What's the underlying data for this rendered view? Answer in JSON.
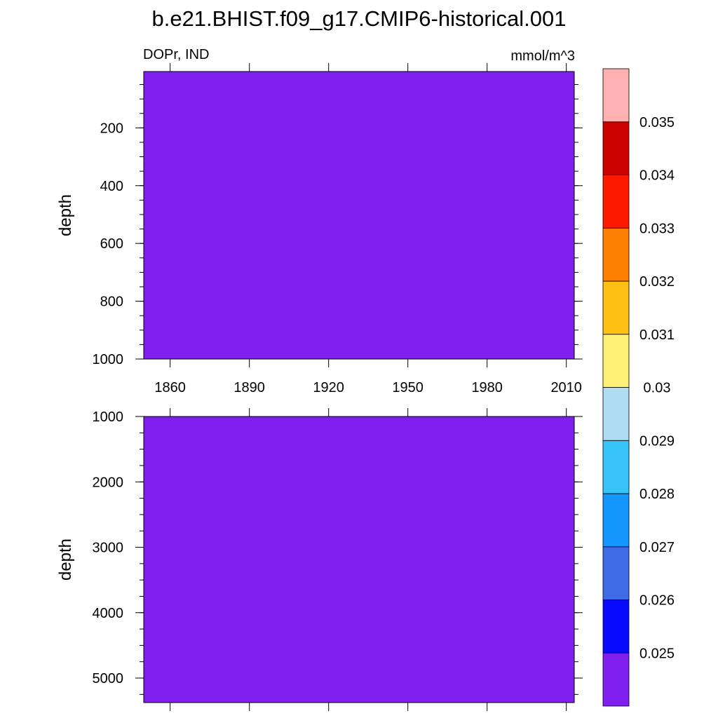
{
  "title": "b.e21.BHIST.f09_g17.CMIP6-historical.001",
  "chart_data": {
    "type": "heatmap",
    "left_label": "DOPr, IND",
    "units_label": "mmol/m^3",
    "x": {
      "range": [
        1850,
        2013
      ],
      "ticks": [
        1860,
        1890,
        1920,
        1950,
        1980,
        2010
      ],
      "tick_labels": [
        "1860",
        "1890",
        "1920",
        "1950",
        "1980",
        "2010"
      ]
    },
    "panels": [
      {
        "id": "upper",
        "ylabel": "depth",
        "ylim": [
          5,
          1000
        ],
        "ylim_note": "depth increases downward",
        "yticks": [
          200,
          400,
          600,
          800,
          1000
        ],
        "ytick_labels": [
          "200",
          "400",
          "600",
          "800",
          "1000"
        ],
        "field_value": "below 0.025",
        "fill_color": "#8020F0"
      },
      {
        "id": "lower",
        "ylabel": "depth",
        "ylim": [
          1000,
          5375
        ],
        "ylim_note": "depth increases downward",
        "yticks": [
          1000,
          2000,
          3000,
          4000,
          5000
        ],
        "ytick_labels": [
          "1000",
          "2000",
          "3000",
          "4000",
          "5000"
        ],
        "field_value": "below 0.025",
        "fill_color": "#8020F0"
      }
    ],
    "colorbar": {
      "levels": [
        0.025,
        0.026,
        0.027,
        0.028,
        0.029,
        0.03,
        0.031,
        0.032,
        0.033,
        0.034,
        0.035
      ],
      "level_labels": [
        "0.025",
        "0.026",
        "0.027",
        "0.028",
        "0.029",
        "0.03",
        "0.031",
        "0.032",
        "0.033",
        "0.034",
        "0.035"
      ],
      "colors": [
        "#8020F0",
        "#0A0AFF",
        "#3D6CE6",
        "#1496FF",
        "#37C3F7",
        "#AFDCF0",
        "#FFF076",
        "#FFC014",
        "#FF8000",
        "#FF1900",
        "#CD0000",
        "#FFB0B0"
      ]
    }
  }
}
